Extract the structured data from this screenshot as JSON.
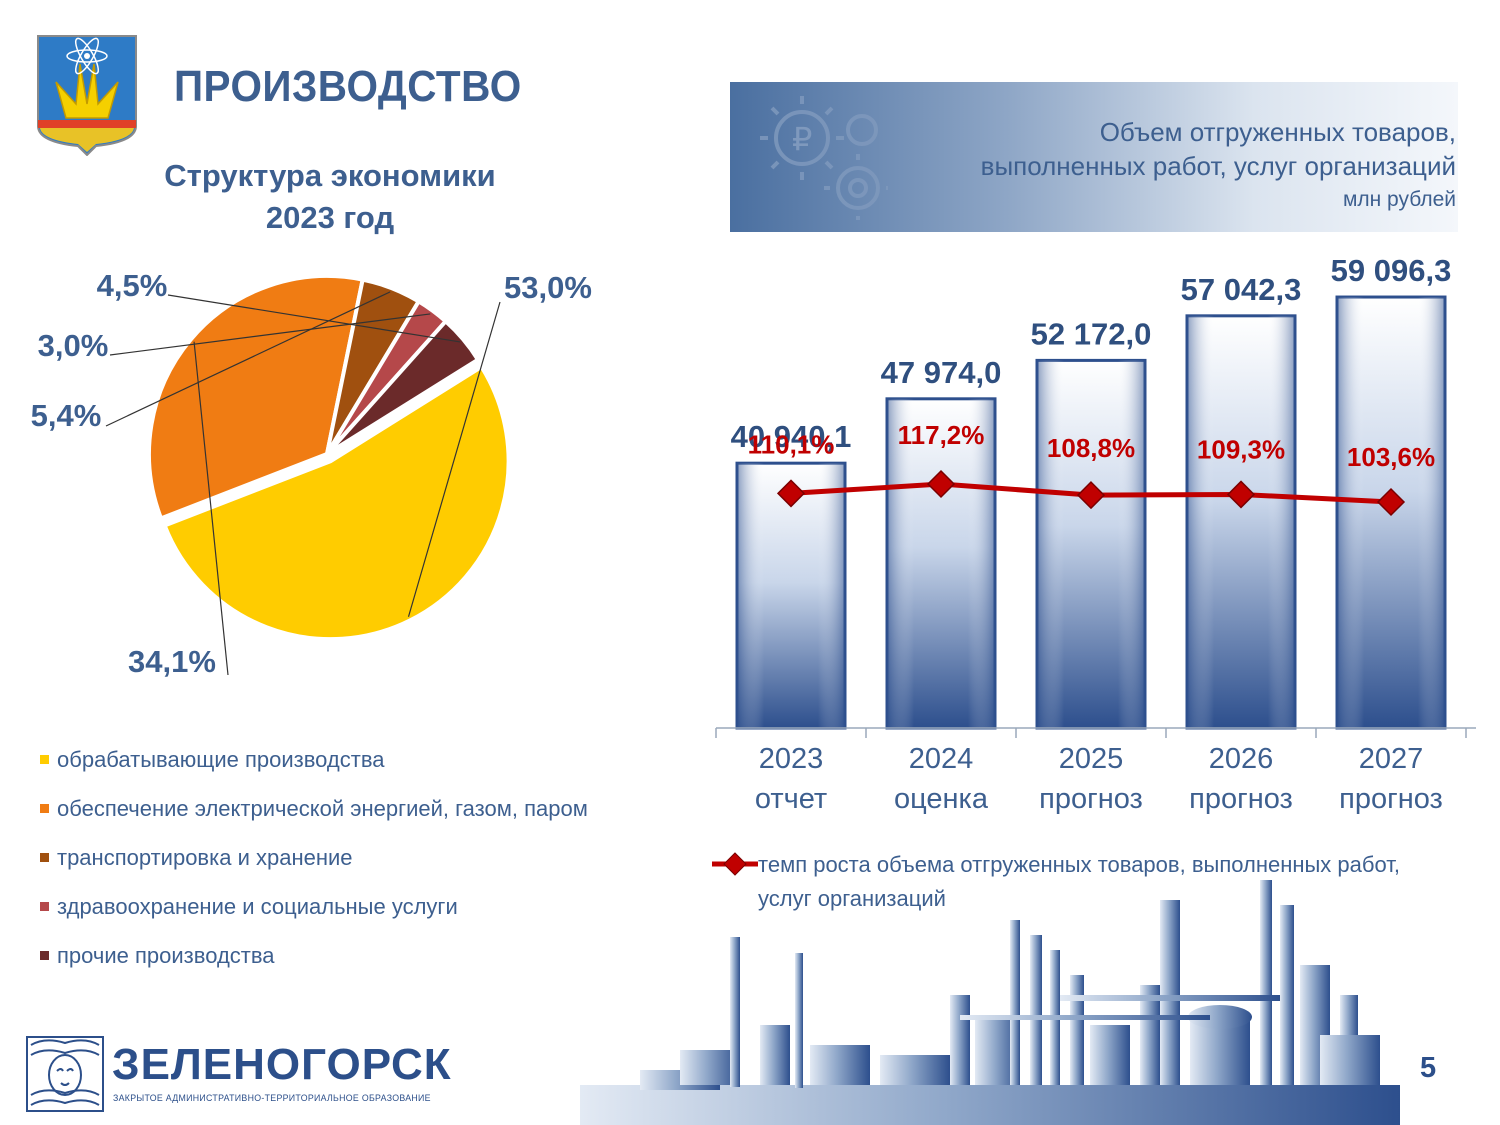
{
  "header": {
    "title": "ПРОИЗВОДСТВО"
  },
  "pie": {
    "title_line1": "Структура экономики",
    "title_line2": "2023 год"
  },
  "banner": {
    "line1": "Объем отгруженных товаров,",
    "line2": "выполненных работ, услуг организаций",
    "unit": "млн рублей",
    "icon": "gears-ruble-icon"
  },
  "line_legend": {
    "label": "темп роста объема отгруженных товаров, выполненных работ, услуг организаций"
  },
  "footer": {
    "city": "ЗЕЛЕНОГОРСК",
    "subtitle": "ЗАКРЫТОЕ АДМИНИСТРАТИВНО-ТЕРРИТОРИАЛЬНОЕ ОБРАЗОВАНИЕ",
    "page": "5"
  },
  "chart_data": [
    {
      "type": "pie",
      "slices": [
        {
          "name": "обрабатывающие производства",
          "value": 53.0,
          "label": "53,0%",
          "color": "#ffcc00"
        },
        {
          "name": "обеспечение электрической энергией, газом, паром",
          "value": 34.1,
          "label": "34,1%",
          "color": "#f07c13"
        },
        {
          "name": "транспортировка и хранение",
          "value": 5.4,
          "label": "5,4%",
          "color": "#a0500f"
        },
        {
          "name": "здравоохранение и социальные услуги",
          "value": 3.0,
          "label": "3,0%",
          "color": "#b5484a"
        },
        {
          "name": "прочие производства",
          "value": 4.5,
          "label": "4,5%",
          "color": "#6b2a2a"
        }
      ]
    },
    {
      "type": "bar",
      "categories": [
        "2023",
        "2024",
        "2025",
        "2026",
        "2027"
      ],
      "category_sublabels": [
        "отчет",
        "оценка",
        "прогноз",
        "прогноз",
        "прогноз"
      ],
      "values": [
        40940.1,
        47974.0,
        52172.0,
        57042.3,
        59096.3
      ],
      "value_labels": [
        "40 940,1",
        "47 974,0",
        "52 172,0",
        "57 042,3",
        "59 096,3"
      ],
      "line_series": {
        "values": [
          110.1,
          117.2,
          108.8,
          109.3,
          103.6
        ],
        "labels": [
          "110,1%",
          "117,2%",
          "108,8%",
          "109,3%",
          "103,6%"
        ],
        "color": "#c00000"
      },
      "bar_color": "#2d4f8d"
    }
  ]
}
